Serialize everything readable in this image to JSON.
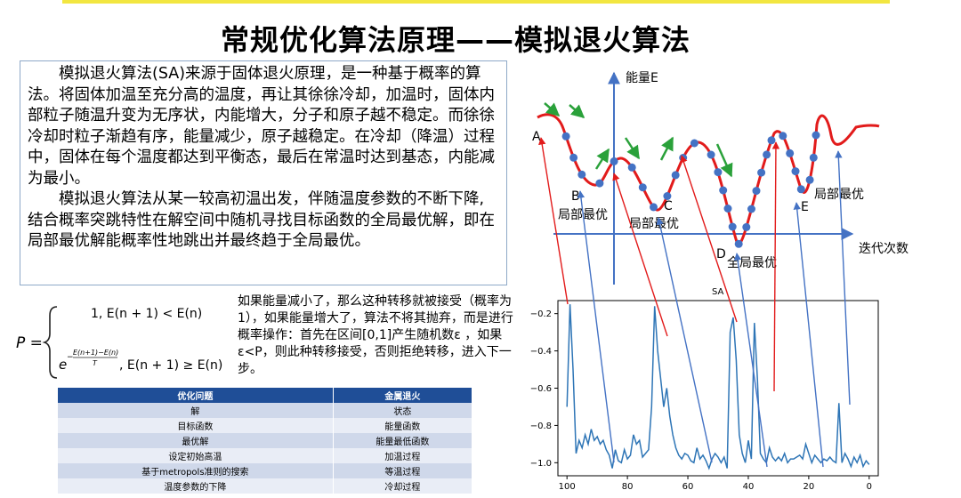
{
  "slide": {
    "title": "常规优化算法原理——模拟退火算法",
    "paragraph1": "模拟退火算法(SA)来源于固体退火原理，是一种基于概率的算法。将固体加温至充分高的温度，再让其徐徐冷却，加温时，固体内部粒子随温升变为无序状，内能增大，分子和原子越不稳定。而徐徐冷却时粒子渐趋有序，能量减少，原子越稳定。在冷却（降温）过程中，固体在每个温度都达到平衡态，最后在常温时达到基态，内能减为最小。",
    "paragraph2": "模拟退火算法从某一较高初温出发，伴随温度参数的不断下降,结合概率突跳特性在解空间中随机寻找目标函数的全局最优解，即在局部最优解能概率性地跳出并最终趋于全局最优。",
    "formula_note": "如果能量减小了，那么这种转移就被接受（概率为1），如果能量增大了，算法不将其抛弃，而是进行概率操作：首先在区间[0,1]产生随机数ε ，如果ε<P，则此种转移接受，否则拒绝转移，进入下一步。"
  },
  "formula": {
    "lhs": "P =",
    "case1": "1, E(n + 1) < E(n)",
    "case2_tail": ", E(n + 1) ≥ E(n)",
    "exp_base": "e",
    "exp_num": "E(n+1)−E(n)",
    "exp_den": "T",
    "exp_minus": "−"
  },
  "table": {
    "headers": [
      "优化问题",
      "金属退火"
    ],
    "rows": [
      [
        "解",
        "状态"
      ],
      [
        "目标函数",
        "能量函数"
      ],
      [
        "最优解",
        "能量最低函数"
      ],
      [
        "设定初始高温",
        "加温过程"
      ],
      [
        "基于metropols准则的搜索",
        "等温过程"
      ],
      [
        "温度参数的下降",
        "冷却过程"
      ]
    ]
  },
  "energy_diagram": {
    "y_axis_label": "能量E",
    "x_axis_label": "迭代次数",
    "point_labels": [
      "A",
      "B",
      "C",
      "D",
      "E"
    ],
    "annotations": [
      "局部最优",
      "局部最优",
      "全局最优",
      "局部最优"
    ],
    "curve_color": "#e21b1b",
    "dot_color": "#4472c4",
    "arrow_color": "#2aa13a"
  },
  "chart_data": {
    "type": "line",
    "title": "SA",
    "xlim": [
      103,
      -3
    ],
    "ylim": [
      -1.07,
      -0.13
    ],
    "xticks": [
      100,
      80,
      60,
      40,
      20,
      0
    ],
    "yticks": [
      -0.2,
      -0.4,
      -0.6,
      -0.8,
      -1.0
    ],
    "tick_labels_x": [
      "100",
      "80",
      "60",
      "40",
      "20",
      "0"
    ],
    "tick_labels_y": [
      "−0.2",
      "−0.4",
      "−0.6",
      "−0.8",
      "−1.0"
    ],
    "line_color": "#2e75b6",
    "x": [
      100,
      99,
      98,
      97,
      96,
      95,
      94,
      93,
      92,
      91,
      90,
      89,
      88,
      87,
      86,
      85,
      84,
      83,
      82,
      81,
      80,
      79,
      78,
      77,
      76,
      75,
      74,
      73,
      72,
      71,
      70,
      69,
      68,
      67,
      66,
      65,
      64,
      63,
      62,
      61,
      60,
      59,
      58,
      57,
      56,
      55,
      54,
      53,
      52,
      51,
      50,
      49,
      48,
      47,
      46,
      45,
      44,
      43,
      42,
      41,
      40,
      39,
      38,
      37,
      36,
      35,
      34,
      33,
      32,
      31,
      30,
      29,
      28,
      27,
      26,
      25,
      24,
      23,
      22,
      21,
      20,
      19,
      18,
      17,
      16,
      15,
      14,
      13,
      12,
      11,
      10,
      9,
      8,
      7,
      6,
      5,
      4,
      3,
      2,
      1,
      0
    ],
    "y": [
      -0.7,
      -0.15,
      -0.5,
      -0.95,
      -0.88,
      -0.92,
      -0.85,
      -0.9,
      -0.82,
      -0.88,
      -0.86,
      -0.9,
      -0.88,
      -0.93,
      -0.96,
      -1.03,
      -0.93,
      -0.99,
      -1.0,
      -0.93,
      -0.98,
      -0.96,
      -0.85,
      -0.9,
      -0.88,
      -0.97,
      -0.95,
      -0.93,
      -0.7,
      -0.16,
      -0.4,
      -0.55,
      -0.7,
      -0.6,
      -0.75,
      -0.85,
      -0.92,
      -0.96,
      -0.98,
      -0.95,
      -0.96,
      -0.99,
      -1.0,
      -0.92,
      -0.98,
      -0.96,
      -0.99,
      -1.03,
      -0.98,
      -0.95,
      -0.97,
      -1.0,
      -0.97,
      -1.03,
      -0.3,
      -0.22,
      -0.45,
      -0.85,
      -0.95,
      -1.0,
      -0.88,
      -0.98,
      -0.25,
      -0.55,
      -0.95,
      -0.98,
      -1.0,
      -0.92,
      -0.97,
      -0.99,
      -0.97,
      -0.99,
      -0.95,
      -1.0,
      -0.98,
      -0.98,
      -0.97,
      -0.96,
      -0.98,
      -0.9,
      -0.95,
      -1.0,
      -0.96,
      -0.98,
      -1.0,
      -0.98,
      -0.99,
      -0.97,
      -0.99,
      -1.0,
      -0.68,
      -1.0,
      -0.95,
      -0.98,
      -1.02,
      -0.97,
      -1.0,
      -0.96,
      -1.02,
      -0.99,
      -1.01
    ]
  }
}
